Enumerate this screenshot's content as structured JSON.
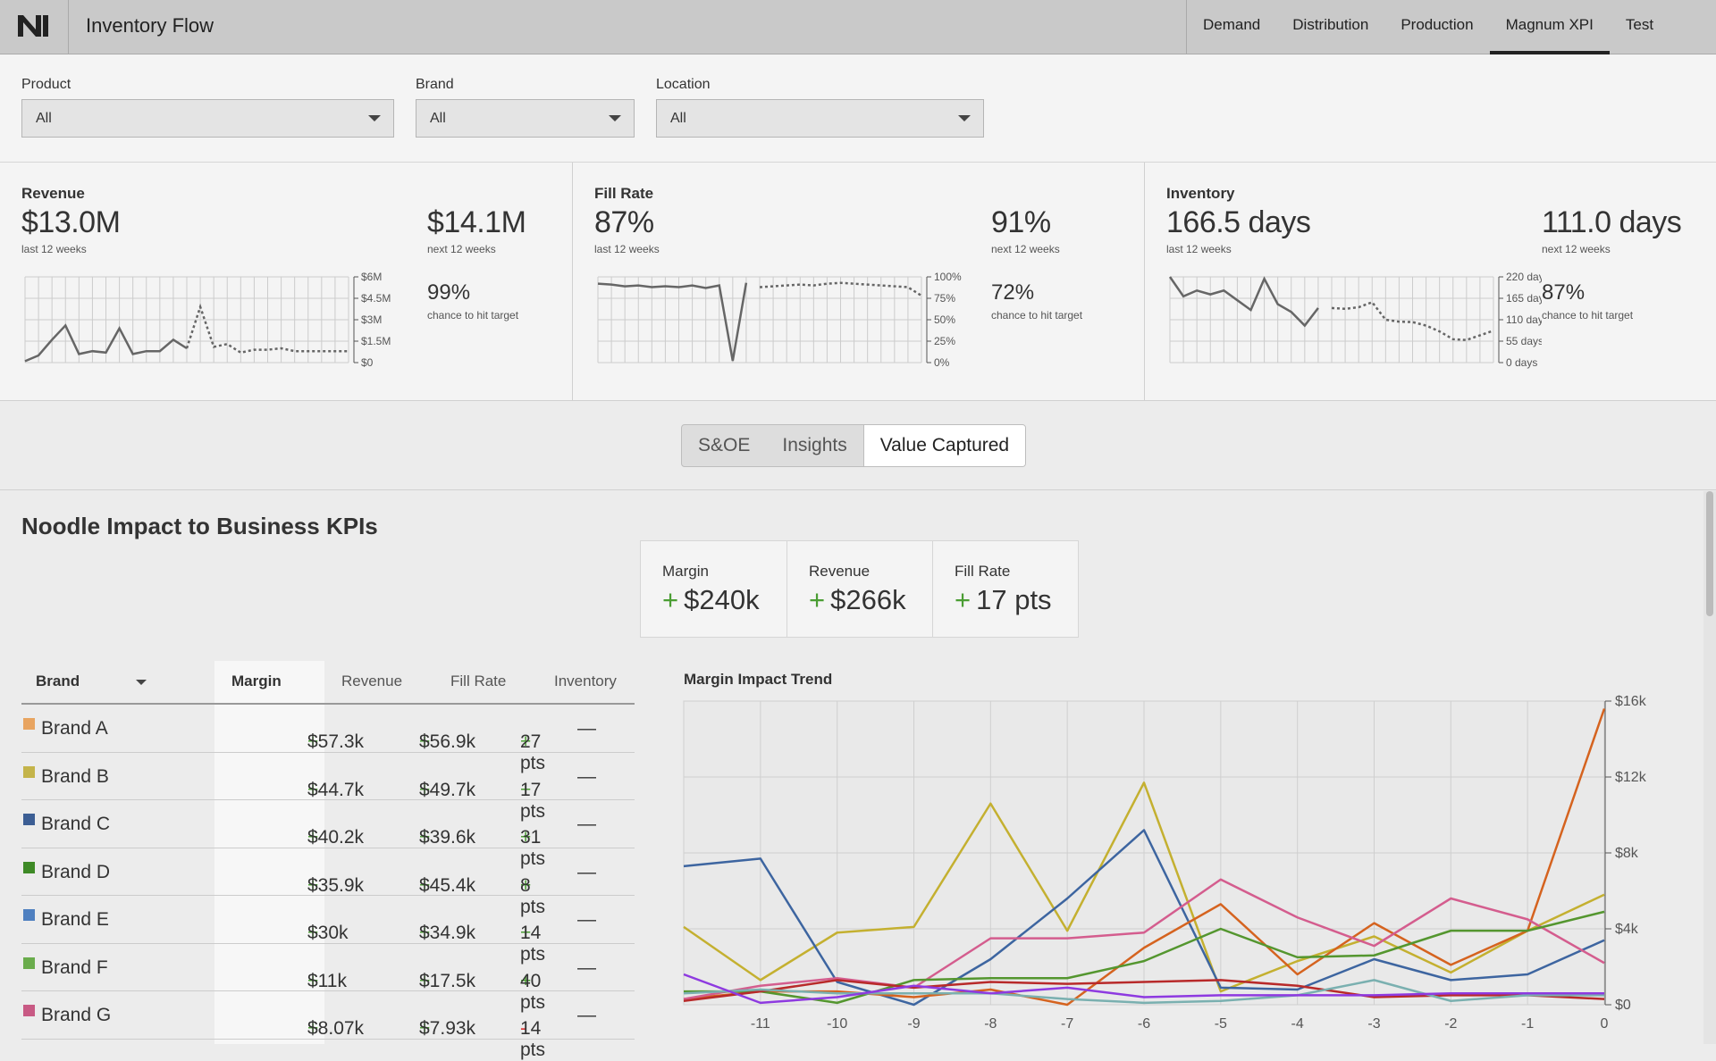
{
  "app": {
    "title": "Inventory Flow",
    "nav": [
      {
        "label": "Demand"
      },
      {
        "label": "Distribution"
      },
      {
        "label": "Production"
      },
      {
        "label": "Magnum XPI",
        "active": true
      },
      {
        "label": "Test"
      }
    ]
  },
  "filters": [
    {
      "label": "Product",
      "value": "All"
    },
    {
      "label": "Brand",
      "value": "All"
    },
    {
      "label": "Location",
      "value": "All"
    }
  ],
  "kpis": [
    {
      "title": "Revenue",
      "value": "$13.0M",
      "sub": "last 12 weeks",
      "next": "$14.1M",
      "next_sub": "next 12 weeks",
      "prob": "99%",
      "prob_sub": "chance to hit target",
      "axis": [
        "$6M",
        "$4.5M",
        "$3M",
        "$1.5M",
        "$0"
      ],
      "ymax": 6,
      "actual": [
        0.1,
        0.5,
        1.6,
        2.6,
        0.6,
        0.8,
        0.7,
        2.4,
        0.6,
        0.8,
        0.8,
        1.6,
        1.0
      ],
      "forecast": [
        1.0,
        3.9,
        1.1,
        1.3,
        0.7,
        0.9,
        0.9,
        1.0,
        0.8,
        0.8,
        0.8,
        0.8,
        0.8
      ]
    },
    {
      "title": "Fill Rate",
      "value": "87%",
      "sub": "last 12 weeks",
      "next": "91%",
      "next_sub": "next 12 weeks",
      "prob": "72%",
      "prob_sub": "chance to hit target",
      "axis": [
        "100%",
        "75%",
        "50%",
        "25%",
        "0%"
      ],
      "ymax": 100,
      "actual": [
        92,
        91,
        89,
        90,
        88,
        89,
        88,
        90,
        87,
        90,
        2,
        93
      ],
      "forecast": [
        88,
        89,
        90,
        91,
        90,
        92,
        93,
        92,
        91,
        90,
        89,
        88,
        78
      ]
    },
    {
      "title": "Inventory",
      "value": "166.5 days",
      "sub": "last 12 weeks",
      "next": "111.0 days",
      "next_sub": "next 12 weeks",
      "prob": "87%",
      "prob_sub": "chance to hit target",
      "axis": [
        "220 days",
        "165 days",
        "110 days",
        "55 days",
        "0 days"
      ],
      "ymax": 220,
      "actual": [
        220,
        170,
        185,
        175,
        185,
        160,
        135,
        215,
        150,
        130,
        95,
        140
      ],
      "forecast": [
        140,
        138,
        142,
        155,
        110,
        105,
        104,
        95,
        80,
        60,
        58,
        70,
        82
      ]
    }
  ],
  "tabs": [
    {
      "label": "S&OE"
    },
    {
      "label": "Insights"
    },
    {
      "label": "Value Captured",
      "active": true
    }
  ],
  "section": {
    "title": "Noodle Impact to Business KPIs"
  },
  "impact": [
    {
      "label": "Margin",
      "sign": "+",
      "value": "$240k"
    },
    {
      "label": "Revenue",
      "sign": "+",
      "value": "$266k"
    },
    {
      "label": "Fill Rate",
      "sign": "+",
      "value": "17 pts"
    }
  ],
  "table": {
    "headers": [
      "Brand",
      "Margin",
      "Revenue",
      "Fill Rate",
      "Inventory"
    ],
    "rows": [
      {
        "brand": "Brand A",
        "color": "#e8a460",
        "margin": "$57.3k",
        "revenue": "$56.9k",
        "fill_sign": "+",
        "fill": "27 pts",
        "inventory": "—"
      },
      {
        "brand": "Brand B",
        "color": "#c4b44a",
        "margin": "$44.7k",
        "revenue": "$49.7k",
        "fill_sign": "+",
        "fill": "17 pts",
        "inventory": "—"
      },
      {
        "brand": "Brand C",
        "color": "#3c5e94",
        "margin": "$40.2k",
        "revenue": "$39.6k",
        "fill_sign": "+",
        "fill": "31 pts",
        "inventory": "—"
      },
      {
        "brand": "Brand D",
        "color": "#3e8a26",
        "margin": "$35.9k",
        "revenue": "$45.4k",
        "fill_sign": "+",
        "fill": "8 pts",
        "inventory": "—"
      },
      {
        "brand": "Brand E",
        "color": "#4f80c0",
        "margin": "$30k",
        "revenue": "$34.9k",
        "fill_sign": "+",
        "fill": "14 pts",
        "inventory": "—"
      },
      {
        "brand": "Brand F",
        "color": "#6aac4c",
        "margin": "$11k",
        "revenue": "$17.5k",
        "fill_sign": "+",
        "fill": "40 pts",
        "inventory": "—"
      },
      {
        "brand": "Brand G",
        "color": "#c85a84",
        "margin": "$8.07k",
        "revenue": "$7.93k",
        "fill_sign": "-",
        "fill": "14 pts",
        "inventory": "—"
      }
    ]
  },
  "chart_data": {
    "type": "line",
    "title": "Margin Impact Trend",
    "x": [
      -12,
      -11,
      -10,
      -9,
      -8,
      -7,
      -6,
      -5,
      -4,
      -3,
      -2,
      -1,
      0
    ],
    "xticks": [
      "-11",
      "-10",
      "-9",
      "-8",
      "-7",
      "-6",
      "-5",
      "-4",
      "-3",
      "-2",
      "-1",
      "0"
    ],
    "yticks": [
      "$16k",
      "$12k",
      "$8k",
      "$4k",
      "$0"
    ],
    "ylim": [
      0,
      16
    ],
    "grid": true,
    "series": [
      {
        "color": "#c4b030",
        "values": [
          4.1,
          1.3,
          3.8,
          4.1,
          10.6,
          3.9,
          11.7,
          0.7,
          2.3,
          3.6,
          1.7,
          3.9,
          5.8
        ]
      },
      {
        "color": "#3d65a0",
        "values": [
          7.3,
          7.7,
          1.2,
          0.0,
          2.4,
          5.6,
          9.2,
          0.9,
          0.8,
          2.4,
          1.3,
          1.6,
          3.4
        ]
      },
      {
        "color": "#d5631f",
        "values": [
          0.3,
          0.7,
          0.7,
          0.4,
          0.8,
          0.0,
          3.0,
          5.3,
          1.6,
          4.3,
          2.1,
          3.9,
          15.6
        ]
      },
      {
        "color": "#d45d8e",
        "values": [
          0.3,
          1.0,
          1.4,
          0.9,
          3.5,
          3.5,
          3.8,
          6.6,
          4.6,
          3.1,
          5.6,
          4.5,
          2.2
        ]
      },
      {
        "color": "#54962f",
        "values": [
          0.7,
          0.7,
          0.1,
          1.3,
          1.4,
          1.4,
          2.3,
          4.0,
          2.5,
          2.6,
          3.9,
          3.9,
          4.9
        ]
      },
      {
        "color": "#b82a2a",
        "values": [
          0.2,
          0.7,
          1.3,
          0.9,
          1.2,
          1.1,
          1.2,
          1.3,
          1.0,
          0.4,
          0.5,
          0.5,
          0.3
        ]
      },
      {
        "color": "#7ab0b0",
        "values": [
          0.6,
          0.8,
          0.6,
          0.6,
          0.6,
          0.3,
          0.1,
          0.2,
          0.5,
          1.3,
          0.2,
          0.5,
          0.5
        ]
      },
      {
        "color": "#8e3ae0",
        "values": [
          1.6,
          0.1,
          0.4,
          1.0,
          0.6,
          0.9,
          0.4,
          0.5,
          0.5,
          0.5,
          0.6,
          0.6,
          0.6
        ]
      }
    ]
  }
}
